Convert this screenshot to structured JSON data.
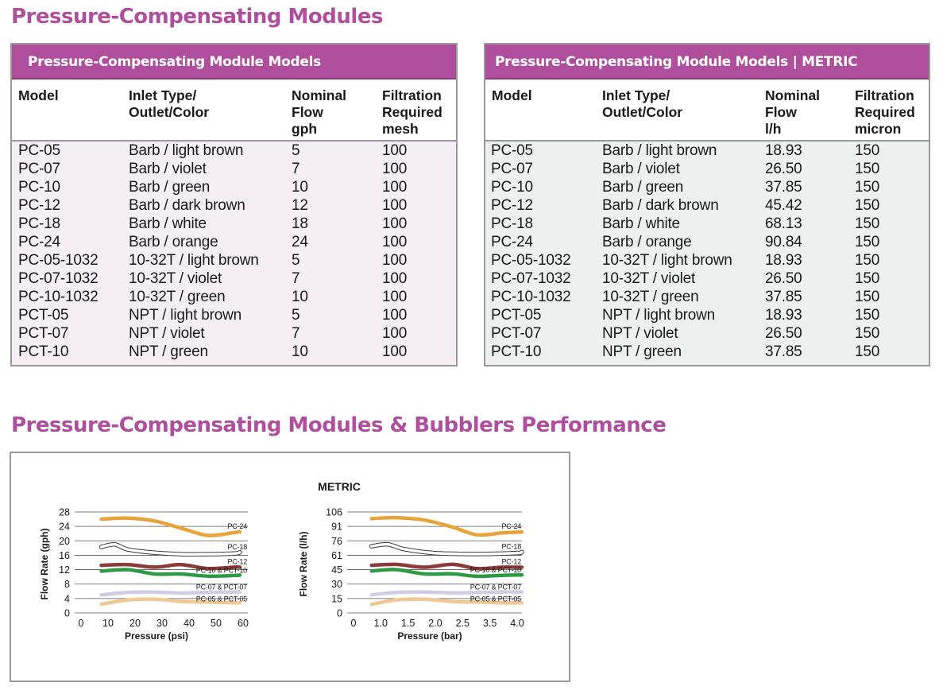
{
  "page": {
    "title": "Pressure-Compensating Modules",
    "performance_title": "Pressure-Compensating Modules & Bubblers Performance"
  },
  "table_us": {
    "banner": "Pressure-Compensating Module Models",
    "headers": [
      "Model",
      "Inlet Type/\nOutlet/Color",
      "Nominal\nFlow\ngph",
      "Filtration\nRequired\nmesh"
    ],
    "rows": [
      [
        "PC-05",
        "Barb / light brown",
        "5",
        "100"
      ],
      [
        "PC-07",
        "Barb / violet",
        "7",
        "100"
      ],
      [
        "PC-10",
        "Barb / green",
        "10",
        "100"
      ],
      [
        "PC-12",
        "Barb / dark brown",
        "12",
        "100"
      ],
      [
        "PC-18",
        "Barb / white",
        "18",
        "100"
      ],
      [
        "PC-24",
        "Barb / orange",
        "24",
        "100"
      ],
      [
        "PC-05-1032",
        "10-32T / light brown",
        "5",
        "100"
      ],
      [
        "PC-07-1032",
        "10-32T / violet",
        "7",
        "100"
      ],
      [
        "PC-10-1032",
        "10-32T / green",
        "10",
        "100"
      ],
      [
        "PCT-05",
        "NPT / light brown",
        "5",
        "100"
      ],
      [
        "PCT-07",
        "NPT / violet",
        "7",
        "100"
      ],
      [
        "PCT-10",
        "NPT / green",
        "10",
        "100"
      ]
    ]
  },
  "table_metric": {
    "banner": "Pressure-Compensating Module Models | METRIC",
    "headers": [
      "Model",
      "Inlet Type/\nOutlet/Color",
      "Nominal\nFlow\nl/h",
      "Filtration\nRequired\nmicron"
    ],
    "rows": [
      [
        "PC-05",
        "Barb / light brown",
        "18.93",
        "150"
      ],
      [
        "PC-07",
        "Barb / violet",
        "26.50",
        "150"
      ],
      [
        "PC-10",
        "Barb / green",
        "37.85",
        "150"
      ],
      [
        "PC-12",
        "Barb / dark brown",
        "45.42",
        "150"
      ],
      [
        "PC-18",
        "Barb / white",
        "68.13",
        "150"
      ],
      [
        "PC-24",
        "Barb / orange",
        "90.84",
        "150"
      ],
      [
        "PC-05-1032",
        "10-32T / light brown",
        "18.93",
        "150"
      ],
      [
        "PC-07-1032",
        "10-32T / violet",
        "26.50",
        "150"
      ],
      [
        "PC-10-1032",
        "10-32T / green",
        "37.85",
        "150"
      ],
      [
        "PCT-05",
        "NPT / light brown",
        "18.93",
        "150"
      ],
      [
        "PCT-07",
        "NPT / violet",
        "26.50",
        "150"
      ],
      [
        "PCT-10",
        "NPT / green",
        "37.85",
        "150"
      ]
    ]
  },
  "colors": {
    "accent": "#b04e9e",
    "border": "#9a9a9a",
    "us_body": "#f6eef5",
    "metric_body": "#eef0ef"
  },
  "chart_data": [
    {
      "type": "line",
      "title": "",
      "xlabel": "Pressure (psi)",
      "ylabel": "Flow Rate (gph)",
      "xlim": [
        0,
        65
      ],
      "ylim": [
        0,
        28
      ],
      "xticks": [
        "0",
        "10",
        "20",
        "30",
        "40",
        "50",
        "60"
      ],
      "yticks": [
        "0",
        "4",
        "8",
        "12",
        "16",
        "20",
        "24",
        "28"
      ],
      "grid": true,
      "series": [
        {
          "name": "PC-24",
          "color": "#e8a43a",
          "style": "solid",
          "x": [
            10,
            20,
            30,
            40,
            50,
            60,
            62
          ],
          "y": [
            26,
            26.3,
            25.5,
            23.5,
            21.5,
            22.3,
            22.5
          ]
        },
        {
          "name": "PC-18",
          "color": "#3a3a3a",
          "style": "outline",
          "x": [
            10,
            15,
            20,
            30,
            40,
            50,
            60,
            62
          ],
          "y": [
            18.3,
            19,
            17.6,
            16.7,
            16.3,
            16.3,
            16.5,
            16.8
          ]
        },
        {
          "name": "PC-12",
          "color": "#8c3a3a",
          "style": "solid",
          "x": [
            10,
            20,
            30,
            40,
            50,
            60,
            62
          ],
          "y": [
            13.2,
            13.4,
            12.7,
            13.4,
            12.3,
            12.7,
            12.7
          ]
        },
        {
          "name": "PC-10 & PCT-10",
          "color": "#2e9a45",
          "style": "solid",
          "x": [
            10,
            20,
            30,
            40,
            50,
            60,
            62
          ],
          "y": [
            11.6,
            12,
            10.8,
            10.8,
            10.2,
            10.4,
            10.5
          ]
        },
        {
          "name": "PC-07 & PCT-07",
          "color": "#cfcde3",
          "style": "solid",
          "x": [
            10,
            20,
            30,
            40,
            50,
            60,
            62
          ],
          "y": [
            5,
            5.7,
            5.8,
            5.5,
            5.7,
            5.8,
            5.8
          ]
        },
        {
          "name": "PC-05 & PCT-05",
          "color": "#efc896",
          "style": "solid",
          "x": [
            10,
            20,
            30,
            40,
            50,
            60,
            62
          ],
          "y": [
            2.4,
            3.6,
            3.8,
            3.2,
            3,
            2.8,
            2.8
          ]
        }
      ]
    },
    {
      "type": "line",
      "title": "METRIC",
      "xlabel": "Pressure (bar)",
      "ylabel": "Flow Rate (l/h)",
      "xlim": [
        0,
        4.3
      ],
      "ylim": [
        0,
        106
      ],
      "xticks": [
        "0",
        "1.0",
        "1.5",
        "2.0",
        "2.5",
        "3.5",
        "4.0"
      ],
      "yticks": [
        "0",
        "15",
        "30",
        "45",
        "61",
        "76",
        "91",
        "106"
      ],
      "grid": true,
      "series": [
        {
          "name": "PC-24",
          "color": "#e8a43a",
          "style": "solid",
          "x": [
            0.6,
            1.2,
            1.9,
            2.6,
            3.2,
            3.8,
            4.3
          ],
          "y": [
            99,
            100,
            97.5,
            90,
            82,
            84,
            85
          ]
        },
        {
          "name": "PC-18",
          "color": "#3a3a3a",
          "style": "outline",
          "x": [
            0.6,
            1.0,
            1.4,
            2.1,
            2.8,
            3.5,
            4.2,
            4.3
          ],
          "y": [
            70,
            72,
            67,
            63,
            62,
            62,
            63,
            64
          ]
        },
        {
          "name": "PC-12",
          "color": "#8c3a3a",
          "style": "solid",
          "x": [
            0.6,
            1.2,
            1.9,
            2.6,
            3.2,
            3.8,
            4.3
          ],
          "y": [
            50,
            51,
            48,
            51,
            46.5,
            48,
            48
          ]
        },
        {
          "name": "PC-10 & PCT-10",
          "color": "#2e9a45",
          "style": "solid",
          "x": [
            0.6,
            1.2,
            1.9,
            2.6,
            3.2,
            3.8,
            4.3
          ],
          "y": [
            44,
            45.5,
            41,
            41,
            38.5,
            39.5,
            40
          ]
        },
        {
          "name": "PC-07 & PCT-07",
          "color": "#cfcde3",
          "style": "solid",
          "x": [
            0.6,
            1.2,
            1.9,
            2.6,
            3.2,
            3.8,
            4.3
          ],
          "y": [
            19,
            21.5,
            22,
            21,
            21.5,
            22,
            22
          ]
        },
        {
          "name": "PC-05 & PCT-05",
          "color": "#efc896",
          "style": "solid",
          "x": [
            0.6,
            1.2,
            1.9,
            2.6,
            3.2,
            3.8,
            4.3
          ],
          "y": [
            9,
            13.6,
            14.4,
            12,
            11.4,
            10.6,
            10.6
          ]
        }
      ]
    }
  ]
}
